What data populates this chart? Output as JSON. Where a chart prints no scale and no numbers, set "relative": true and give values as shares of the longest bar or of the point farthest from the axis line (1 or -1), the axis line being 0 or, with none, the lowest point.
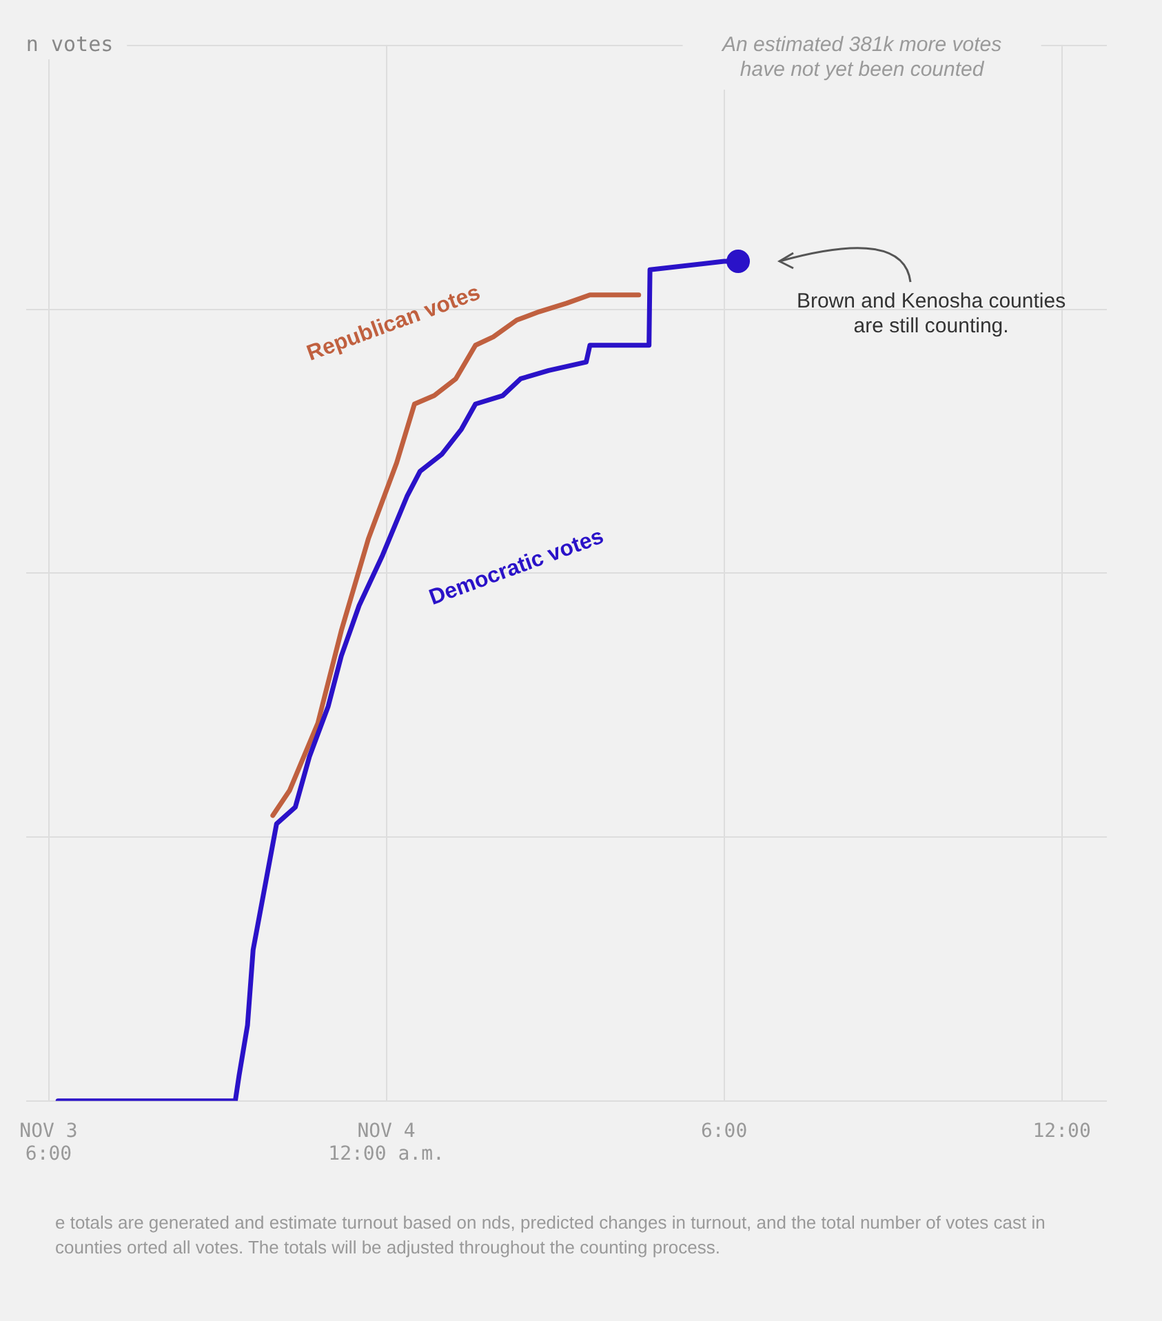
{
  "chart_data": {
    "type": "line",
    "relative": true,
    "grid": true,
    "legend": false,
    "marker": "none",
    "line_style": "solid",
    "xlim": [
      "--11-03T17:36",
      "--11-04T12:48"
    ],
    "xticks": [
      {
        "value": "--11-03T18:00",
        "label": "NOV 3\n6:00"
      },
      {
        "value": "--11-04T00:00",
        "label": "NOV 4\n12:00 a.m."
      },
      {
        "value": "--11-04T06:00",
        "label": "6:00"
      },
      {
        "value": "--11-04T12:00",
        "label": "12:00"
      }
    ],
    "series": [
      {
        "name": "Republican votes",
        "color": "#c0603f",
        "x": [
          "--11-03T21:59",
          "--11-03T22:17",
          "--11-03T22:47",
          "--11-03T23:12",
          "--11-03T23:41",
          "--11-04T00:11",
          "--11-04T00:30",
          "--11-04T00:51",
          "--11-04T01:14",
          "--11-04T01:35",
          "--11-04T01:54",
          "--11-04T02:19",
          "--11-04T02:43",
          "--11-04T03:12",
          "--11-04T03:37",
          "--11-04T04:29"
        ],
        "values": [
          0.34,
          0.37,
          0.45,
          0.56,
          0.67,
          0.76,
          0.83,
          0.84,
          0.86,
          0.9,
          0.91,
          0.93,
          0.94,
          0.95,
          0.96,
          0.96
        ]
      },
      {
        "name": "Democratic votes",
        "color": "#2a12c8",
        "x": [
          "--11-03T18:10",
          "--11-03T21:19",
          "--11-03T21:23",
          "--11-03T21:32",
          "--11-03T21:38",
          "--11-03T21:53",
          "--11-03T22:03",
          "--11-03T22:23",
          "--11-03T22:38",
          "--11-03T22:58",
          "--11-03T23:12",
          "--11-03T23:31",
          "--11-03T23:56",
          "--11-04T00:22",
          "--11-04T00:36",
          "--11-04T00:59",
          "--11-04T01:20",
          "--11-04T01:35",
          "--11-04T02:04",
          "--11-04T02:23",
          "--11-04T02:53",
          "--11-04T03:33",
          "--11-04T03:37",
          "--11-04T04:40",
          "--11-04T04:41",
          "--11-04T06:00",
          "--11-04T06:15"
        ],
        "values": [
          0,
          0,
          0.03,
          0.09,
          0.18,
          0.27,
          0.33,
          0.35,
          0.41,
          0.47,
          0.53,
          0.59,
          0.65,
          0.72,
          0.75,
          0.77,
          0.8,
          0.83,
          0.84,
          0.86,
          0.87,
          0.88,
          0.9,
          0.9,
          0.99,
          1,
          1
        ]
      },
      {
        "type": "scatter",
        "color": "#2a12c8",
        "marker": "circle",
        "x": [
          "--11-04T06:15"
        ],
        "values": [
          1
        ]
      }
    ],
    "annotations": [
      "n votes",
      "An estimated 381k more votes have not yet been counted",
      "Brown and Kenosha counties are still counting.",
      "e totals are generated and estimate turnout based on nds, predicted changes in turnout, and the total number of votes cast in counties orted all votes. The totals will be adjusted throughout the counting process."
    ]
  }
}
